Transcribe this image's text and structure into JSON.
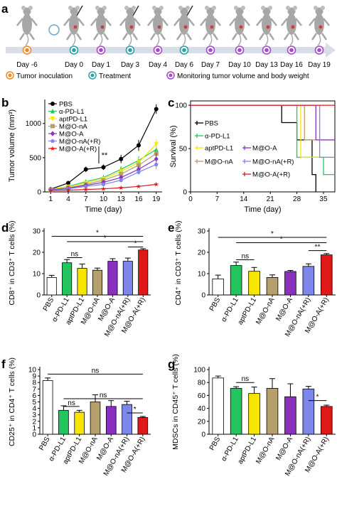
{
  "colors": {
    "PBS": "#000000",
    "a-PD-L1": "#22c55e",
    "aptPD-L1": "#f6e600",
    "M@O-nA": "#b59f6b",
    "M@O-A": "#8b2fbf",
    "M@O-nA(+R)": "#7d86ea",
    "M@O-A(+R)": "#e11818",
    "inoculation": "#f08a24",
    "treatment": "#2ca0a8",
    "monitoring": "#a64ac9",
    "mouse": "#9a9a9a"
  },
  "panel_letters": {
    "a": "a",
    "b": "b",
    "c": "c",
    "d": "d",
    "e": "e",
    "f": "f",
    "g": "g"
  },
  "timeline": {
    "days": [
      "Day -6",
      "Day 0",
      "Day 1",
      "Day 3",
      "Day 4",
      "Day 6",
      "Day 7",
      "Day 10",
      "Day 13",
      "Day 16",
      "Day 19"
    ],
    "legend": [
      {
        "label": "Tumor inoculation",
        "key": "inoculation"
      },
      {
        "label": "Treatment",
        "key": "treatment"
      },
      {
        "label": "Monitoring tumor volume and body weight",
        "key": "monitoring"
      }
    ]
  },
  "chart_data": [
    {
      "id": "b",
      "type": "line",
      "xlabel": "Time (day)",
      "ylabel": "Tumor volume (mm³)",
      "x": [
        1,
        4,
        7,
        10,
        13,
        16,
        19
      ],
      "xticks": [
        1,
        4,
        7,
        10,
        13,
        16,
        19
      ],
      "yticks": [
        0,
        500,
        1000
      ],
      "ylim": [
        0,
        1350
      ],
      "annotation": "**",
      "series": [
        {
          "name": "PBS",
          "color_key": "PBS",
          "marker": "circle",
          "values": [
            40,
            130,
            330,
            360,
            480,
            680,
            1210
          ],
          "errors": [
            10,
            25,
            40,
            40,
            60,
            80,
            70
          ]
        },
        {
          "name": "α-PD-L1",
          "color_key": "a-PD-L1",
          "marker": "triangle",
          "values": [
            35,
            80,
            150,
            210,
            330,
            460,
            620
          ],
          "errors": [
            8,
            15,
            25,
            35,
            45,
            60,
            80
          ]
        },
        {
          "name": "aptPD-L1",
          "color_key": "aptPD-L1",
          "marker": "triangle-down",
          "values": [
            35,
            75,
            130,
            190,
            300,
            430,
            700
          ],
          "errors": [
            8,
            15,
            25,
            30,
            40,
            60,
            70
          ]
        },
        {
          "name": "M@O-nA",
          "color_key": "M@O-nA",
          "marker": "square",
          "values": [
            30,
            60,
            110,
            170,
            260,
            390,
            560
          ],
          "errors": [
            6,
            12,
            20,
            25,
            40,
            55,
            70
          ]
        },
        {
          "name": "M@O-A",
          "color_key": "M@O-A",
          "marker": "diamond",
          "values": [
            30,
            55,
            95,
            140,
            210,
            330,
            480
          ],
          "errors": [
            6,
            10,
            18,
            22,
            35,
            50,
            90
          ]
        },
        {
          "name": "M@O-nA(+R)",
          "color_key": "M@O-nA(+R)",
          "marker": "pentagon",
          "values": [
            25,
            45,
            80,
            110,
            170,
            290,
            400
          ],
          "errors": [
            5,
            10,
            15,
            20,
            30,
            40,
            70
          ]
        },
        {
          "name": "M@O-A(+R)",
          "color_key": "M@O-A(+R)",
          "marker": "star",
          "values": [
            20,
            25,
            35,
            45,
            60,
            80,
            110
          ],
          "errors": [
            4,
            5,
            6,
            8,
            10,
            12,
            15
          ]
        }
      ]
    },
    {
      "id": "c",
      "type": "line",
      "xlabel": "Time (day)",
      "ylabel": "Survival (%)",
      "xticks": [
        0,
        7,
        14,
        21,
        28,
        35
      ],
      "yticks": [
        0,
        50,
        100
      ],
      "xlim": [
        0,
        38
      ],
      "ylim": [
        0,
        105
      ],
      "series": [
        {
          "name": "PBS",
          "color_key": "PBS",
          "x": [
            0,
            24,
            24,
            28,
            28,
            32,
            32,
            33,
            33
          ],
          "y": [
            100,
            100,
            80,
            80,
            60,
            60,
            20,
            20,
            0
          ]
        },
        {
          "name": "α-PD-L1",
          "color_key": "a-PD-L1",
          "x": [
            0,
            28,
            28,
            35,
            35,
            38
          ],
          "y": [
            100,
            100,
            40,
            40,
            20,
            20
          ]
        },
        {
          "name": "aptPD-L1",
          "color_key": "aptPD-L1",
          "x": [
            0,
            29,
            29,
            38
          ],
          "y": [
            100,
            100,
            40,
            40
          ]
        },
        {
          "name": "M@O-nA",
          "color_key": "M@O-nA",
          "x": [
            0,
            30,
            30,
            38
          ],
          "y": [
            100,
            100,
            60,
            60
          ]
        },
        {
          "name": "M@O-A",
          "color_key": "M@O-A",
          "x": [
            0,
            33,
            33,
            38
          ],
          "y": [
            100,
            100,
            60,
            60
          ]
        },
        {
          "name": "M@O-nA(+R)",
          "color_key": "M@O-nA(+R)",
          "x": [
            0,
            34,
            34,
            38
          ],
          "y": [
            100,
            100,
            40,
            40
          ]
        },
        {
          "name": "M@O-A(+R)",
          "color_key": "M@O-A(+R)",
          "x": [
            0,
            38
          ],
          "y": [
            100,
            100
          ]
        }
      ]
    },
    {
      "id": "d",
      "type": "bar",
      "ylabel": "CD8⁺ in CD3⁺ T cells (%)",
      "categories": [
        "PBS",
        "α-PD-L1",
        "aptPD-L1",
        "M@O-nA",
        "M@O-A",
        "M@O-nA(+R)",
        "M@O-A(+R)"
      ],
      "values": [
        8.2,
        15.1,
        12.5,
        11.6,
        15.8,
        15.8,
        21.1
      ],
      "errors": [
        1.0,
        1.5,
        2.0,
        1.0,
        1.2,
        1.5,
        0.6
      ],
      "yticks": [
        0,
        10,
        20,
        30
      ],
      "ylim": [
        0,
        30
      ],
      "significance": [
        {
          "from": 1,
          "to": 2,
          "y": 17.5,
          "label": "ns"
        },
        {
          "from": 0,
          "to": 6,
          "y": 27.5,
          "label": "*"
        },
        {
          "from": 1,
          "to": 6,
          "y": 25.0,
          "label": "*"
        },
        {
          "from": 5,
          "to": 6,
          "y": 22.5,
          "label": "*"
        }
      ]
    },
    {
      "id": "e",
      "type": "bar",
      "ylabel": "CD4⁺ in CD3⁺ T cells (%)",
      "categories": [
        "PBS",
        "α-PD-L1",
        "aptPD-L1",
        "M@O-nA",
        "M@O-A",
        "M@O-nA(+R)",
        "M@O-A(+R)"
      ],
      "values": [
        7.5,
        13.8,
        11.1,
        8.2,
        11.0,
        13.4,
        18.8
      ],
      "errors": [
        1.8,
        1.6,
        1.8,
        1.2,
        0.5,
        1.2,
        0.6
      ],
      "yticks": [
        0,
        10,
        20,
        30
      ],
      "ylim": [
        0,
        30
      ],
      "significance": [
        {
          "from": 1,
          "to": 2,
          "y": 16.5,
          "label": "ns"
        },
        {
          "from": 0,
          "to": 6,
          "y": 27.0,
          "label": "*"
        },
        {
          "from": 1,
          "to": 6,
          "y": 24.5,
          "label": "*"
        },
        {
          "from": 5,
          "to": 6,
          "y": 20.8,
          "label": "**"
        }
      ]
    },
    {
      "id": "f",
      "type": "bar",
      "ylabel": "CD25⁺ in CD4⁺ T cells (%)",
      "categories": [
        "PBS",
        "α-PD-L1",
        "aptPD-L1",
        "M@O-nA",
        "M@O-A",
        "M@O-nA(+R)",
        "M@O-A(+R)"
      ],
      "values": [
        8.3,
        3.7,
        3.4,
        5.0,
        4.3,
        4.6,
        2.6
      ],
      "errors": [
        0.4,
        0.7,
        0.3,
        1.1,
        0.9,
        0.5,
        0.15
      ],
      "yticks": [
        0,
        1,
        2,
        3,
        4,
        5,
        6,
        7,
        8,
        9,
        10
      ],
      "ylim": [
        0,
        10
      ],
      "significance": [
        {
          "from": 1,
          "to": 2,
          "y": 4.3,
          "label": "ns"
        },
        {
          "from": 1,
          "to": 6,
          "y": 5.5,
          "label": "ns"
        },
        {
          "from": 0,
          "to": 6,
          "y": 9.3,
          "label": "ns"
        },
        {
          "from": 5,
          "to": 6,
          "y": 3.3,
          "label": "*"
        }
      ]
    },
    {
      "id": "g",
      "type": "bar",
      "ylabel": "MDSCs in CD45⁺ T cells (%)",
      "categories": [
        "PBS",
        "α-PD-L1",
        "aptPD-L1",
        "M@O-nA",
        "M@O-A",
        "M@O-nA(+R)",
        "M@O-A(+R)"
      ],
      "values": [
        87,
        71,
        63,
        71,
        58,
        70,
        43
      ],
      "errors": [
        3,
        2.5,
        10,
        15,
        20,
        4,
        2
      ],
      "yticks": [
        0,
        20,
        40,
        60,
        80,
        100
      ],
      "ylim": [
        0,
        100
      ],
      "significance": [
        {
          "from": 1,
          "to": 2,
          "y": 80,
          "label": "ns"
        },
        {
          "from": 5,
          "to": 6,
          "y": 52,
          "label": "*"
        }
      ]
    }
  ]
}
